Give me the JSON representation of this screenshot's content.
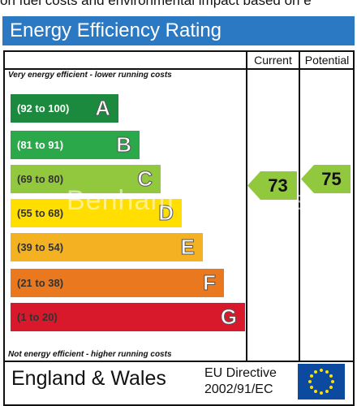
{
  "top_text": "on fuel costs and environmental impact based on e",
  "header": {
    "title": "Energy Efficiency Rating"
  },
  "columns": {
    "current": "Current",
    "potential": "Potential"
  },
  "notes": {
    "top": "Very energy efficient - lower running costs",
    "bottom": "Not energy efficient - higher running costs"
  },
  "bands": [
    {
      "range": "(92 to 100)",
      "letter": "A",
      "color": "#1b8a3e"
    },
    {
      "range": "(81 to 91)",
      "letter": "B",
      "color": "#2aa84a"
    },
    {
      "range": "(69 to 80)",
      "letter": "C",
      "color": "#92c83e"
    },
    {
      "range": "(55 to 68)",
      "letter": "D",
      "color": "#ffde00"
    },
    {
      "range": "(39 to 54)",
      "letter": "E",
      "color": "#f4b223"
    },
    {
      "range": "(21 to 38)",
      "letter": "F",
      "color": "#e9781f"
    },
    {
      "range": "(1 to 20)",
      "letter": "G",
      "color": "#d7192b"
    }
  ],
  "ratings": {
    "current": "73",
    "potential": "75",
    "arrow_color": "#92c83e"
  },
  "watermark": "Benham & Reeves",
  "footer": {
    "country": "England & Wales",
    "directive_line1": "EU Directive",
    "directive_line2": "2002/91/EC"
  },
  "icons": {
    "flag": "eu-flag-icon"
  }
}
